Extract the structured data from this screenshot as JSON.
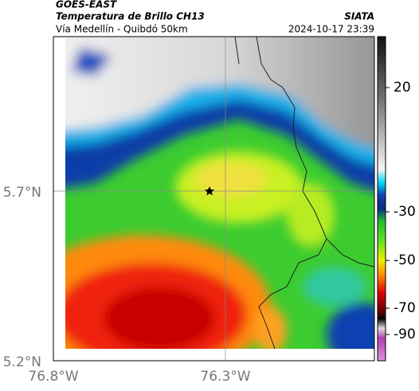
{
  "header": {
    "source": "GOES-EAST",
    "title": "Temperatura de Brillo CH13",
    "subtitle": "Vía Medellín - Quibdó 50km",
    "agency": "SIATA",
    "datetime": "2024-10-17 23:39"
  },
  "map": {
    "lat_ticks": [
      "5.7°N",
      "5.2°N"
    ],
    "lon_ticks": [
      "76.8°W",
      "76.3°W"
    ]
  },
  "colorbar": {
    "ticks": [
      20,
      -30,
      -50,
      -70,
      -90
    ]
  }
}
